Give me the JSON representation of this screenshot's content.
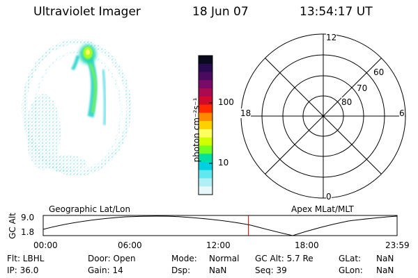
{
  "header": {
    "instrument": "Ultraviolet Imager",
    "date": "18 Jun 07",
    "time": "13:54:17 UT"
  },
  "colorbar": {
    "label": "photon cm⁻²s⁻¹",
    "tick_labels": [
      "100",
      "10"
    ],
    "colors": [
      "#0a0a1e",
      "#2a0a50",
      "#4a0a60",
      "#7a0a6a",
      "#aa0a50",
      "#d00a2a",
      "#ff2a00",
      "#ff8a00",
      "#ffd000",
      "#ffff60",
      "#d0ff00",
      "#70ff20",
      "#00e0a0",
      "#00d0e0",
      "#60e8f0",
      "#b0f0f4",
      "#e8f8fa"
    ]
  },
  "polar_plot": {
    "mlt_labels": {
      "top": "12",
      "left": "18",
      "right": "6",
      "bottom": "0"
    },
    "lat_labels": [
      "60",
      "70",
      "80"
    ]
  },
  "timeline": {
    "left_label": "Geographic Lat/Lon",
    "right_label": "Apex MLat/MLT",
    "axis_title": "GC Alt",
    "y_labels": [
      "9.0",
      "1.8"
    ],
    "x_labels": [
      "00:00",
      "06:00",
      "12:00",
      "18:00",
      "23:59"
    ],
    "current_time_fraction": 0.58,
    "marker_color": "#c00000"
  },
  "status": {
    "filter": "Flt: LBHL",
    "ip": "IP: 36.0",
    "door": "Door: Open",
    "gain": "Gain: 14",
    "mode_label": "Mode:",
    "mode_value": "Normal",
    "dsp_label": "Dsp:",
    "dsp_value": "NaN",
    "gc_alt": "GC Alt: 5.7 Re",
    "seq": "Seq: 39",
    "glat_label": "GLat:",
    "glat_value": "NaN",
    "glon_label": "GLon:",
    "glon_value": "NaN"
  }
}
